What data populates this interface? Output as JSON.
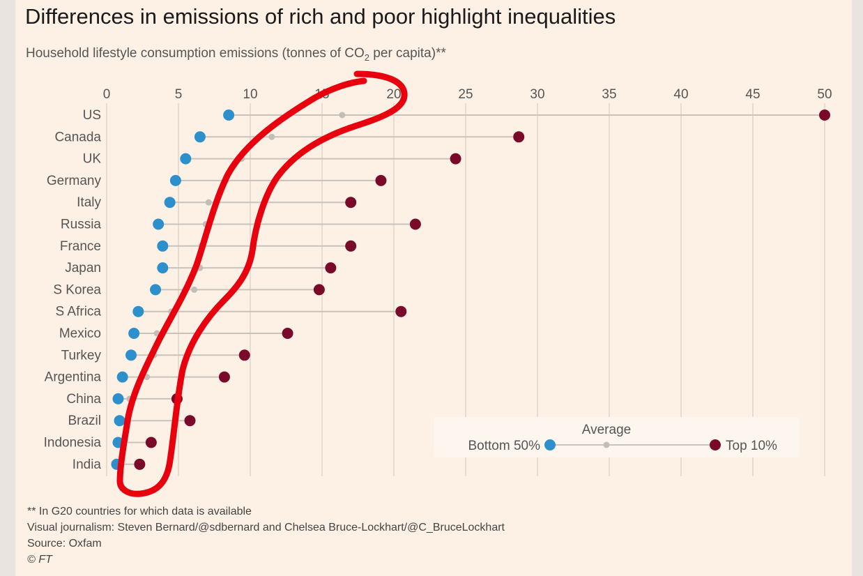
{
  "title": "Differences in emissions of rich and poor highlight inequalities",
  "subtitle_main": "Household lifestyle consumption emissions (tonnes of CO",
  "subtitle_sub": "2",
  "subtitle_end": " per capita)**",
  "footer": {
    "note": "** In G20 countries for which data is available",
    "credits": "Visual journalism: Steven Bernard/@sdbernard and Chelsea Bruce-Lockhart/@C_BruceLockhart",
    "source": "Source: Oxfam",
    "copyright": "© FT"
  },
  "legend": {
    "bottom": "Bottom 50%",
    "average": "Average",
    "top": "Top 10%"
  },
  "colors": {
    "bottom50": "#2e8fcd",
    "average": "#c3bdb7",
    "top10": "#7a0a2a",
    "annotation": "#e8000f"
  },
  "chart_data": {
    "type": "dot-plot",
    "xlim": [
      0,
      50
    ],
    "xticks": [
      "0",
      "5",
      "10",
      "15",
      "20",
      "25",
      "30",
      "35",
      "40",
      "45",
      "50"
    ],
    "categories": [
      "US",
      "Canada",
      "UK",
      "Germany",
      "Italy",
      "Russia",
      "France",
      "Japan",
      "S Korea",
      "S Africa",
      "Mexico",
      "Turkey",
      "Argentina",
      "China",
      "Brazil",
      "Indonesia",
      "India"
    ],
    "series": [
      {
        "name": "Bottom 50%",
        "values": [
          8.5,
          6.5,
          5.5,
          4.8,
          4.4,
          3.6,
          3.9,
          3.9,
          3.4,
          2.2,
          1.9,
          1.7,
          1.1,
          0.8,
          0.9,
          0.8,
          0.7
        ]
      },
      {
        "name": "Average",
        "values": [
          16.4,
          11.5,
          9.4,
          8.3,
          7.1,
          6.9,
          6.6,
          6.5,
          6.1,
          4.5,
          3.5,
          3.3,
          2.8,
          1.6,
          1.5,
          1.2,
          1.0
        ]
      },
      {
        "name": "Top 10%",
        "values": [
          50.0,
          28.7,
          24.3,
          19.1,
          17.0,
          21.5,
          17.0,
          15.6,
          14.8,
          20.5,
          12.6,
          9.6,
          8.2,
          4.9,
          5.8,
          3.1,
          2.3
        ]
      }
    ],
    "grid": true,
    "legend_position": "bottom-right"
  }
}
